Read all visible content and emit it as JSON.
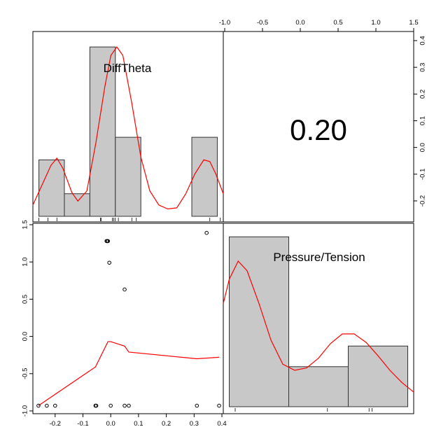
{
  "chart_data": {
    "type": "pairs",
    "variables": [
      "DiffTheta",
      "Pressure/Tension"
    ],
    "correlation": "0.20",
    "diag_x_ticks": [
      "-1.0",
      "-0.5",
      "0.0",
      "0.5",
      "1.0",
      "1.5"
    ],
    "diag_y_ticks": [
      "0.4",
      "0.3",
      "0.2",
      "0.1",
      "0.0",
      "-0.1",
      "-0.2"
    ],
    "scatter_x_ticks": [
      "-0.2",
      "-0.1",
      "0.0",
      "0.1",
      "0.2",
      "0.3",
      "0.4"
    ],
    "scatter_y_ticks": [
      "1.5",
      "1.0",
      "0.5",
      "0.0",
      "-0.5",
      "-1.0"
    ],
    "difftheta_hist": {
      "bins": [
        {
          "x0": -0.26,
          "x1": -0.175,
          "density": 1.0
        },
        {
          "x0": -0.175,
          "x1": -0.09,
          "density": 0.4
        },
        {
          "x0": -0.09,
          "x1": -0.005,
          "density": 3.0
        },
        {
          "x0": -0.005,
          "x1": 0.08,
          "density": 1.4
        },
        {
          "x0": 0.25,
          "x1": 0.335,
          "density": 1.4
        }
      ],
      "ylim": [
        0,
        3.15
      ],
      "xlim": [
        -0.28,
        0.355
      ]
    },
    "difftheta_density": [
      [
        -0.28,
        0.2
      ],
      [
        -0.25,
        0.55
      ],
      [
        -0.22,
        0.9
      ],
      [
        -0.2,
        1.03
      ],
      [
        -0.18,
        0.85
      ],
      [
        -0.15,
        0.42
      ],
      [
        -0.13,
        0.27
      ],
      [
        -0.1,
        0.45
      ],
      [
        -0.07,
        1.3
      ],
      [
        -0.04,
        2.3
      ],
      [
        -0.02,
        2.85
      ],
      [
        0.0,
        3.0
      ],
      [
        0.02,
        2.85
      ],
      [
        0.05,
        2.0
      ],
      [
        0.08,
        1.05
      ],
      [
        0.11,
        0.45
      ],
      [
        0.14,
        0.2
      ],
      [
        0.17,
        0.13
      ],
      [
        0.2,
        0.15
      ],
      [
        0.23,
        0.4
      ],
      [
        0.26,
        0.75
      ],
      [
        0.29,
        1.0
      ],
      [
        0.31,
        0.97
      ],
      [
        0.33,
        0.75
      ],
      [
        0.355,
        0.4
      ]
    ],
    "difftheta_rug": [
      -0.26,
      -0.23,
      -0.2,
      -0.055,
      -0.052,
      -0.015,
      -0.01,
      -0.005,
      0.005,
      0.05,
      0.065,
      0.31,
      0.345
    ],
    "pressure_hist": {
      "bins": [
        {
          "x0": -1.0,
          "x1": 0.0,
          "density": 1.4
        },
        {
          "x0": 0.0,
          "x1": 1.0,
          "density": 0.33
        },
        {
          "x0": 1.0,
          "x1": 2.0,
          "density": 0.5
        }
      ],
      "ylim": [
        0,
        1.5
      ],
      "xlim": [
        -1.1,
        2.1
      ]
    },
    "pressure_density": [
      [
        -1.1,
        0.85
      ],
      [
        -1.0,
        1.05
      ],
      [
        -0.85,
        1.2
      ],
      [
        -0.7,
        1.12
      ],
      [
        -0.5,
        0.85
      ],
      [
        -0.3,
        0.55
      ],
      [
        -0.1,
        0.35
      ],
      [
        0.1,
        0.3
      ],
      [
        0.3,
        0.32
      ],
      [
        0.5,
        0.4
      ],
      [
        0.7,
        0.52
      ],
      [
        0.9,
        0.6
      ],
      [
        1.1,
        0.6
      ],
      [
        1.3,
        0.53
      ],
      [
        1.5,
        0.42
      ],
      [
        1.7,
        0.3
      ],
      [
        1.9,
        0.2
      ],
      [
        2.1,
        0.12
      ]
    ],
    "pressure_rug": [
      -0.9,
      0.65,
      1.35,
      1.4
    ],
    "scatter_points": [
      {
        "x": -0.26,
        "y": -0.93
      },
      {
        "x": -0.23,
        "y": -0.93
      },
      {
        "x": -0.2,
        "y": -0.93
      },
      {
        "x": -0.055,
        "y": -0.93
      },
      {
        "x": -0.052,
        "y": -0.93
      },
      {
        "x": -0.015,
        "y": 1.28
      },
      {
        "x": -0.012,
        "y": 1.28
      },
      {
        "x": -0.01,
        "y": 1.28
      },
      {
        "x": -0.005,
        "y": 0.99
      },
      {
        "x": 0.0,
        "y": -0.93
      },
      {
        "x": 0.05,
        "y": 0.63
      },
      {
        "x": 0.05,
        "y": -0.93
      },
      {
        "x": 0.065,
        "y": -0.93
      },
      {
        "x": 0.31,
        "y": -0.93
      },
      {
        "x": 0.345,
        "y": 1.39
      },
      {
        "x": 0.39,
        "y": -0.93
      }
    ],
    "smooth_line": [
      [
        -0.26,
        -0.93
      ],
      [
        -0.055,
        -0.41
      ],
      [
        -0.01,
        -0.07
      ],
      [
        0.0,
        -0.07
      ],
      [
        0.05,
        -0.13
      ],
      [
        0.065,
        -0.21
      ],
      [
        0.31,
        -0.3
      ],
      [
        0.39,
        -0.28
      ]
    ],
    "scatter_xlim": [
      -0.28,
      0.405
    ],
    "scatter_ylim": [
      -1.0,
      1.5
    ],
    "colors": {
      "bar_fill": "#c8c8c8",
      "density_line": "#ff0000"
    }
  }
}
